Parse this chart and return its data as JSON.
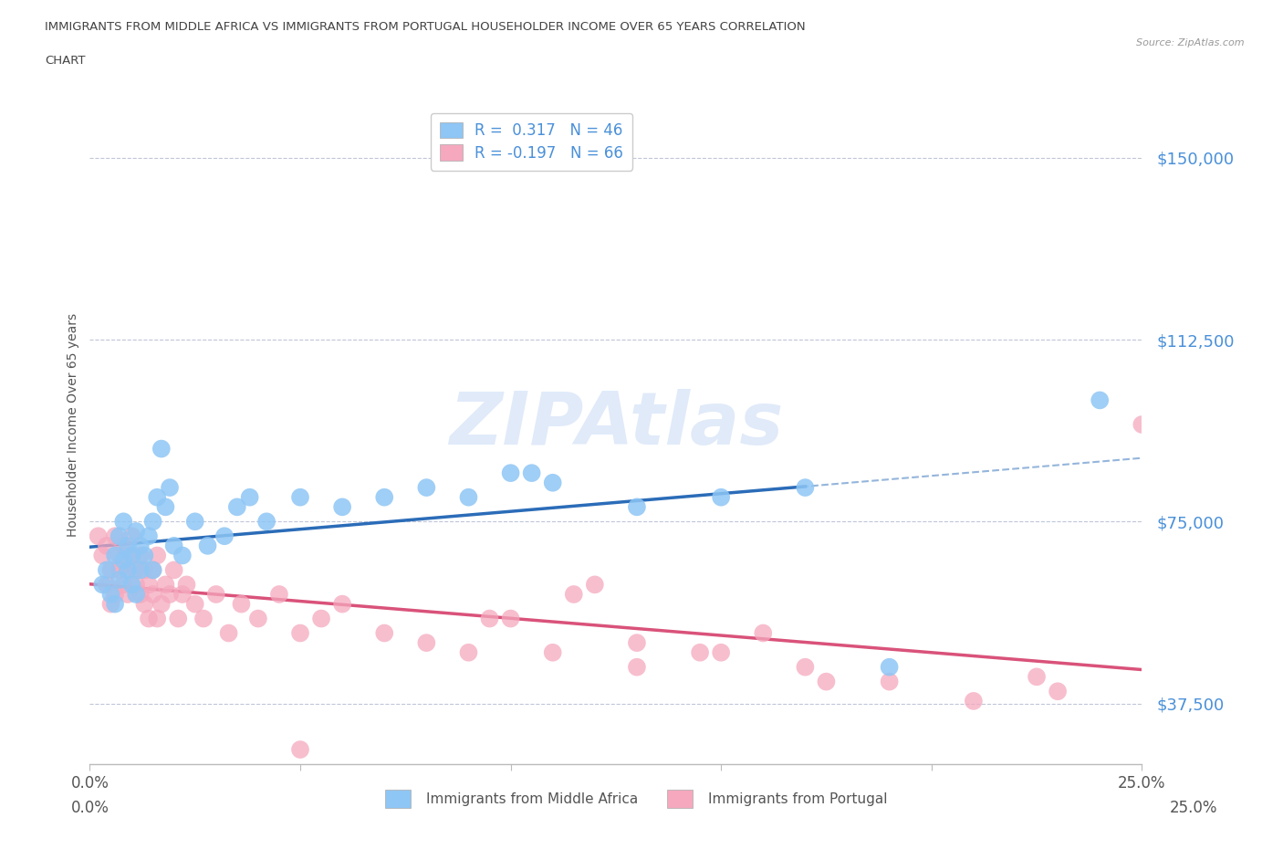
{
  "title_line1": "IMMIGRANTS FROM MIDDLE AFRICA VS IMMIGRANTS FROM PORTUGAL HOUSEHOLDER INCOME OVER 65 YEARS CORRELATION",
  "title_line2": "CHART",
  "source": "Source: ZipAtlas.com",
  "ylabel": "Householder Income Over 65 years",
  "xlim": [
    0.0,
    0.25
  ],
  "ylim": [
    25000,
    165000
  ],
  "yticks": [
    37500,
    75000,
    112500,
    150000
  ],
  "ytick_labels": [
    "$37,500",
    "$75,000",
    "$112,500",
    "$150,000"
  ],
  "xticks": [
    0.0,
    0.05,
    0.1,
    0.15,
    0.2,
    0.25
  ],
  "xtick_labels": [
    "0.0%",
    "",
    "",
    "",
    "",
    "25.0%"
  ],
  "watermark": "ZIPAtlas",
  "legend_R1": "R =  0.317",
  "legend_N1": "N = 46",
  "legend_R2": "R = -0.197",
  "legend_N2": "N = 66",
  "series1_color": "#8ec6f5",
  "series2_color": "#f5a8be",
  "series1_line_color": "#2b6cb8",
  "series2_line_color": "#d9527a",
  "axis_label_color": "#4a90d9",
  "title_color": "#444444",
  "blue_scatter_x": [
    0.003,
    0.004,
    0.005,
    0.006,
    0.006,
    0.007,
    0.007,
    0.008,
    0.008,
    0.009,
    0.009,
    0.01,
    0.01,
    0.011,
    0.011,
    0.012,
    0.012,
    0.013,
    0.014,
    0.015,
    0.015,
    0.016,
    0.017,
    0.018,
    0.019,
    0.02,
    0.022,
    0.025,
    0.028,
    0.032,
    0.035,
    0.038,
    0.042,
    0.05,
    0.06,
    0.07,
    0.08,
    0.09,
    0.1,
    0.11,
    0.13,
    0.15,
    0.17,
    0.19,
    0.105,
    0.24
  ],
  "blue_scatter_y": [
    62000,
    65000,
    60000,
    58000,
    68000,
    63000,
    72000,
    67000,
    75000,
    70000,
    65000,
    62000,
    68000,
    60000,
    73000,
    65000,
    70000,
    68000,
    72000,
    65000,
    75000,
    80000,
    90000,
    78000,
    82000,
    70000,
    68000,
    75000,
    70000,
    72000,
    78000,
    80000,
    75000,
    80000,
    78000,
    80000,
    82000,
    80000,
    85000,
    83000,
    78000,
    80000,
    82000,
    45000,
    85000,
    100000
  ],
  "pink_scatter_x": [
    0.002,
    0.003,
    0.004,
    0.004,
    0.005,
    0.005,
    0.006,
    0.006,
    0.007,
    0.007,
    0.008,
    0.008,
    0.009,
    0.009,
    0.01,
    0.01,
    0.011,
    0.011,
    0.012,
    0.012,
    0.013,
    0.013,
    0.014,
    0.014,
    0.015,
    0.015,
    0.016,
    0.016,
    0.017,
    0.018,
    0.019,
    0.02,
    0.021,
    0.022,
    0.023,
    0.025,
    0.027,
    0.03,
    0.033,
    0.036,
    0.04,
    0.045,
    0.05,
    0.055,
    0.06,
    0.07,
    0.08,
    0.09,
    0.1,
    0.11,
    0.13,
    0.15,
    0.16,
    0.17,
    0.19,
    0.21,
    0.23,
    0.115,
    0.13,
    0.095,
    0.145,
    0.12,
    0.175,
    0.225,
    0.05,
    0.25
  ],
  "pink_scatter_y": [
    72000,
    68000,
    70000,
    62000,
    65000,
    58000,
    72000,
    60000,
    68000,
    65000,
    62000,
    70000,
    65000,
    60000,
    72000,
    68000,
    62000,
    65000,
    60000,
    68000,
    65000,
    58000,
    62000,
    55000,
    65000,
    60000,
    55000,
    68000,
    58000,
    62000,
    60000,
    65000,
    55000,
    60000,
    62000,
    58000,
    55000,
    60000,
    52000,
    58000,
    55000,
    60000,
    52000,
    55000,
    58000,
    52000,
    50000,
    48000,
    55000,
    48000,
    50000,
    48000,
    52000,
    45000,
    42000,
    38000,
    40000,
    60000,
    45000,
    55000,
    48000,
    62000,
    42000,
    43000,
    28000,
    95000
  ]
}
